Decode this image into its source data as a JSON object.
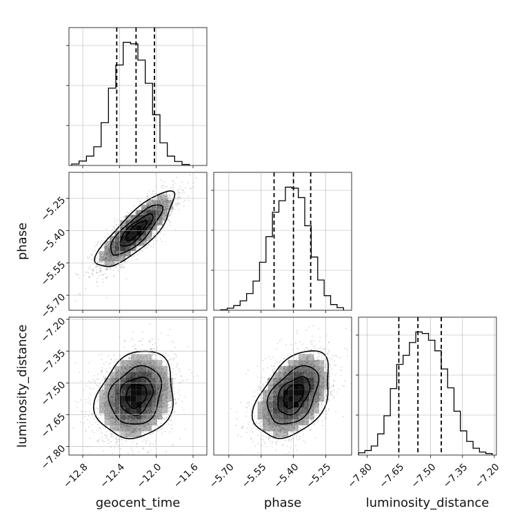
{
  "chart_data": {
    "type": "corner",
    "parameters": [
      {
        "name": "geocent_time",
        "label": "geocent_time",
        "range": [
          -12.95,
          -11.45
        ],
        "ticks": [
          -12.8,
          -12.4,
          -12.0,
          -11.6
        ],
        "tick_labels": [
          "−12.8",
          "−12.4",
          "−12.0",
          "−11.6"
        ],
        "quantiles": [
          -12.43,
          -12.22,
          -12.02
        ],
        "histogram": {
          "bin_edges": [
            -12.92,
            -12.84,
            -12.76,
            -12.68,
            -12.6,
            -12.52,
            -12.44,
            -12.36,
            -12.28,
            -12.2,
            -12.12,
            -12.04,
            -11.96,
            -11.88,
            -11.8,
            -11.72,
            -11.64
          ],
          "counts": [
            3,
            9,
            19,
            38,
            87,
            157,
            204,
            250,
            247,
            214,
            167,
            103,
            46,
            19,
            8,
            2
          ]
        }
      },
      {
        "name": "phase",
        "label": "phase",
        "range": [
          -5.77,
          -5.13
        ],
        "ticks": [
          -5.7,
          -5.55,
          -5.4,
          -5.25
        ],
        "tick_labels": [
          "−5.70",
          "−5.55",
          "−5.40",
          "−5.25"
        ],
        "quantiles": [
          -5.49,
          -5.4,
          -5.32
        ],
        "histogram": {
          "bin_edges": [
            -5.7375,
            -5.7075,
            -5.6775,
            -5.6475,
            -5.6175,
            -5.5875,
            -5.5575,
            -5.5275,
            -5.4975,
            -5.4675,
            -5.4375,
            -5.4075,
            -5.3775,
            -5.3475,
            -5.3175,
            -5.2875,
            -5.2575,
            -5.2275,
            -5.1975,
            -5.1675
          ],
          "counts": [
            1,
            4,
            9,
            18,
            32,
            56,
            92,
            141,
            188,
            210,
            236,
            234,
            216,
            162,
            102,
            58,
            28,
            11,
            5
          ]
        }
      },
      {
        "name": "luminosity_distance",
        "label": "luminosity_distance",
        "range": [
          -7.84,
          -7.19
        ],
        "ticks": [
          -7.8,
          -7.65,
          -7.5,
          -7.35,
          -7.2
        ],
        "tick_labels": [
          "−7.80",
          "−7.65",
          "−7.50",
          "−7.35",
          "−7.20"
        ],
        "quantiles": [
          -7.65,
          -7.56,
          -7.45
        ],
        "histogram": {
          "bin_edges": [
            -7.84,
            -7.81,
            -7.78,
            -7.75,
            -7.72,
            -7.69,
            -7.66,
            -7.63,
            -7.6,
            -7.57,
            -7.54,
            -7.51,
            -7.48,
            -7.45,
            -7.42,
            -7.39,
            -7.36,
            -7.33,
            -7.3,
            -7.27,
            -7.24,
            -7.21
          ],
          "counts": [
            3,
            6,
            12,
            28,
            52,
            88,
            120,
            132,
            149,
            163,
            161,
            152,
            138,
            114,
            89,
            58,
            32,
            18,
            9,
            4,
            2
          ]
        }
      }
    ],
    "correlations": [
      {
        "x": "geocent_time",
        "y": "phase",
        "rho": 0.82
      },
      {
        "x": "geocent_time",
        "y": "luminosity_distance",
        "rho": 0.18
      },
      {
        "x": "phase",
        "y": "luminosity_distance",
        "rho": 0.42
      }
    ],
    "contour_levels": [
      0.12,
      0.39,
      0.68,
      0.86
    ],
    "grid": true,
    "line_color": "#000000",
    "density_color": "#000000",
    "sample_color": "#888888"
  }
}
